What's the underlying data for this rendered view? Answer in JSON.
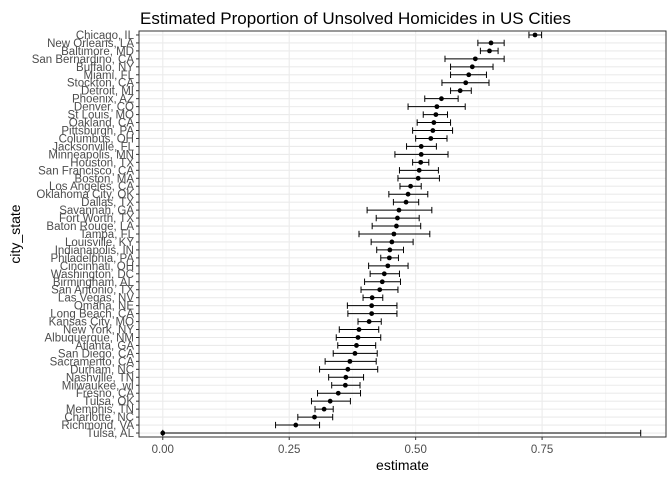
{
  "chart_data": {
    "type": "scatter",
    "title": "Estimated Proportion of Unsolved Homicides in US Cities",
    "xlabel": "estimate",
    "ylabel": "city_state",
    "xlim": [
      -0.047,
      0.995
    ],
    "x_ticks": [
      0.0,
      0.25,
      0.5,
      0.75
    ],
    "x_tick_labels": [
      "0.00",
      "0.25",
      "0.50",
      "0.75"
    ],
    "grid": true,
    "error_bars": true,
    "colors": {
      "point": "#000000",
      "errorbar": "#000000",
      "grid_major": "#ebebeb",
      "grid_minor": "#f5f5f5",
      "panel_border": "#333333"
    },
    "categories": [
      "Chicago, IL",
      "New Orleans, LA",
      "Baltimore, MD",
      "San Bernardino, CA",
      "Buffalo, NY",
      "Miami, FL",
      "Stockton, CA",
      "Detroit, MI",
      "Phoenix, AZ",
      "Denver, CO",
      "St Louis, MO",
      "Oakland, CA",
      "Pittsburgh, PA",
      "Columbus, OH",
      "Jacksonville, FL",
      "Minneapolis, MN",
      "Houston, TX",
      "San Francisco, CA",
      "Boston, MA",
      "Los Angeles, CA",
      "Oklahoma City, OK",
      "Dallas, TX",
      "Savannah, GA",
      "Fort Worth, TX",
      "Baton Rouge, LA",
      "Tampa, FL",
      "Louisville, KY",
      "Indianapolis, IN",
      "Philadelphia, PA",
      "Cincinnati, OH",
      "Washington, DC",
      "Birmingham, AL",
      "San Antonio, TX",
      "Las Vegas, NV",
      "Omaha, NE",
      "Long Beach, CA",
      "Kansas City, MO",
      "New York, NY",
      "Albuquerque, NM",
      "Atlanta, GA",
      "San Diego, CA",
      "Sacramento, CA",
      "Durham, NC",
      "Nashville, TN",
      "Milwaukee, wI",
      "Fresno, CA",
      "Tulsa, OK",
      "Memphis, TN",
      "Charlotte, NC",
      "Richmond, VA",
      "Tulsa, AL"
    ],
    "estimate": [
      0.736,
      0.649,
      0.646,
      0.618,
      0.612,
      0.605,
      0.599,
      0.588,
      0.551,
      0.542,
      0.54,
      0.536,
      0.534,
      0.53,
      0.511,
      0.511,
      0.51,
      0.507,
      0.505,
      0.49,
      0.485,
      0.481,
      0.467,
      0.464,
      0.462,
      0.457,
      0.453,
      0.449,
      0.448,
      0.445,
      0.438,
      0.434,
      0.429,
      0.414,
      0.413,
      0.413,
      0.408,
      0.388,
      0.386,
      0.383,
      0.38,
      0.37,
      0.366,
      0.362,
      0.361,
      0.347,
      0.331,
      0.319,
      0.3,
      0.263,
      0.0
    ],
    "lower": [
      0.724,
      0.623,
      0.628,
      0.558,
      0.569,
      0.569,
      0.552,
      0.569,
      0.518,
      0.485,
      0.515,
      0.503,
      0.494,
      0.5,
      0.482,
      0.459,
      0.494,
      0.468,
      0.465,
      0.469,
      0.447,
      0.456,
      0.404,
      0.422,
      0.414,
      0.388,
      0.412,
      0.423,
      0.431,
      0.407,
      0.41,
      0.399,
      0.392,
      0.396,
      0.365,
      0.366,
      0.386,
      0.349,
      0.343,
      0.346,
      0.337,
      0.321,
      0.31,
      0.328,
      0.334,
      0.306,
      0.294,
      0.301,
      0.267,
      0.223,
      0.0
    ],
    "upper": [
      0.749,
      0.675,
      0.663,
      0.675,
      0.653,
      0.64,
      0.645,
      0.61,
      0.584,
      0.598,
      0.563,
      0.569,
      0.573,
      0.562,
      0.541,
      0.564,
      0.526,
      0.545,
      0.547,
      0.511,
      0.524,
      0.506,
      0.532,
      0.507,
      0.51,
      0.528,
      0.495,
      0.476,
      0.466,
      0.485,
      0.468,
      0.47,
      0.465,
      0.435,
      0.463,
      0.463,
      0.432,
      0.427,
      0.431,
      0.421,
      0.424,
      0.422,
      0.425,
      0.397,
      0.39,
      0.391,
      0.371,
      0.337,
      0.336,
      0.31,
      0.945
    ]
  }
}
